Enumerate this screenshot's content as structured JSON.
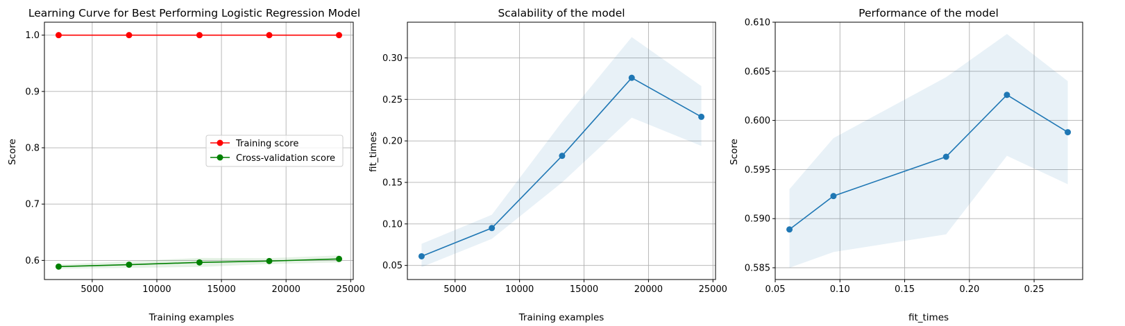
{
  "figure": {
    "colors": {
      "training": "#ff0000",
      "cross_validation": "#008000",
      "series": "#1f77b4",
      "band": "#1f77b4",
      "grid": "#b0b0b0",
      "axes": "#000000"
    }
  },
  "chart_data": [
    {
      "type": "line",
      "title": "Learning Curve for Best Performing Logistic Regression Model",
      "xlabel": "Training examples",
      "ylabel": "Score",
      "xlim": [
        1300,
        25200
      ],
      "ylim": [
        0.566,
        1.023
      ],
      "xticks": [
        5000,
        10000,
        15000,
        20000,
        25000
      ],
      "xtick_labels": [
        "5000",
        "10000",
        "15000",
        "20000",
        "25000"
      ],
      "yticks": [
        0.6,
        0.7,
        0.8,
        0.9,
        1.0
      ],
      "ytick_labels": [
        "0.6",
        "0.7",
        "0.8",
        "0.9",
        "1.0"
      ],
      "grid": true,
      "legend": {
        "placement": "center-right"
      },
      "series": [
        {
          "name": "Training score",
          "color": "#ff0000",
          "marker": "circle",
          "x": [
            2400,
            7850,
            13300,
            18700,
            24100
          ],
          "y": [
            1.0,
            1.0,
            1.0,
            1.0,
            1.0
          ]
        },
        {
          "name": "Cross-validation score",
          "color": "#008000",
          "marker": "circle",
          "x": [
            2400,
            7850,
            13300,
            18700,
            24100
          ],
          "y": [
            0.589,
            0.5924,
            0.5964,
            0.5988,
            0.6026
          ],
          "band_lower": [
            0.585,
            0.5866,
            0.5884,
            0.5935,
            0.5964
          ],
          "band_upper": [
            0.593,
            0.5982,
            0.6044,
            0.604,
            0.6088
          ]
        }
      ]
    },
    {
      "type": "line",
      "title": "Scalability of the model",
      "xlabel": "Training examples",
      "ylabel": "fit_times",
      "xlim": [
        1300,
        25200
      ],
      "ylim": [
        0.033,
        0.343
      ],
      "xticks": [
        5000,
        10000,
        15000,
        20000,
        25000
      ],
      "xtick_labels": [
        "5000",
        "10000",
        "15000",
        "20000",
        "25000"
      ],
      "yticks": [
        0.05,
        0.1,
        0.15,
        0.2,
        0.25,
        0.3
      ],
      "ytick_labels": [
        "0.05",
        "0.10",
        "0.15",
        "0.20",
        "0.25",
        "0.30"
      ],
      "grid": true,
      "series": [
        {
          "color": "#1f77b4",
          "marker": "circle",
          "x": [
            2400,
            7850,
            13300,
            18700,
            24100
          ],
          "y": [
            0.061,
            0.095,
            0.182,
            0.276,
            0.229
          ],
          "band_lower": [
            0.048,
            0.082,
            0.15,
            0.228,
            0.194
          ],
          "band_upper": [
            0.076,
            0.111,
            0.223,
            0.325,
            0.266
          ]
        }
      ]
    },
    {
      "type": "line",
      "title": "Performance of the model",
      "xlabel": "fit_times",
      "ylabel": "Score",
      "xlim": [
        0.05,
        0.2875
      ],
      "ylim": [
        0.5838,
        0.61
      ],
      "xticks": [
        0.05,
        0.1,
        0.15,
        0.2,
        0.25
      ],
      "xtick_labels": [
        "0.05",
        "0.10",
        "0.15",
        "0.20",
        "0.25"
      ],
      "yticks": [
        0.585,
        0.59,
        0.595,
        0.6,
        0.605,
        0.61
      ],
      "ytick_labels": [
        "0.585",
        "0.590",
        "0.595",
        "0.600",
        "0.605",
        "0.610"
      ],
      "grid": true,
      "series": [
        {
          "color": "#1f77b4",
          "marker": "circle",
          "x": [
            0.061,
            0.095,
            0.182,
            0.229,
            0.276
          ],
          "y": [
            0.5889,
            0.5923,
            0.5963,
            0.6026,
            0.5988
          ],
          "band_lower": [
            0.585,
            0.5866,
            0.5884,
            0.5964,
            0.5935
          ],
          "band_upper": [
            0.593,
            0.5982,
            0.6044,
            0.6088,
            0.604
          ]
        }
      ]
    }
  ]
}
